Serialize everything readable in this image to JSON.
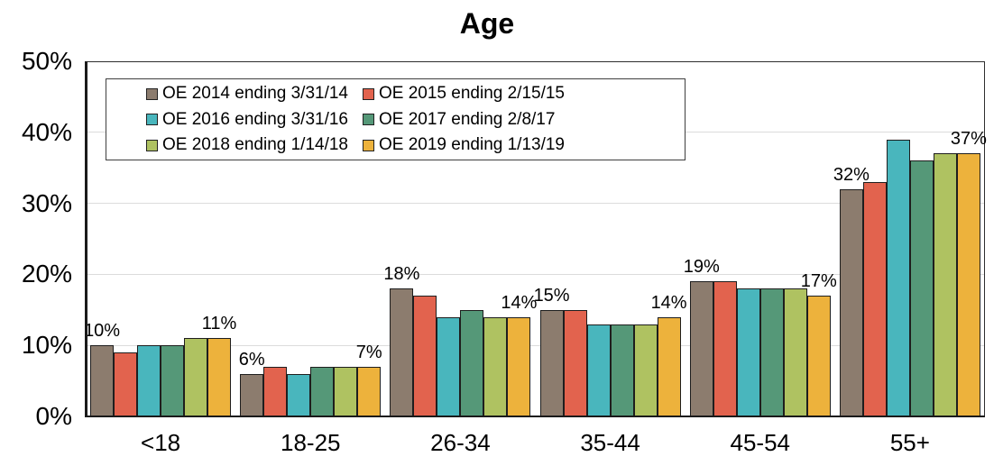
{
  "chart_data": {
    "type": "bar",
    "title": "Age",
    "categories": [
      "<18",
      "18-25",
      "26-34",
      "35-44",
      "45-54",
      "55+"
    ],
    "series": [
      {
        "name": "OE 2014 ending 3/31/14",
        "color": "#8C7C6E",
        "values": [
          10,
          6,
          18,
          15,
          19,
          32
        ]
      },
      {
        "name": "OE 2015 ending 2/15/15",
        "color": "#E2634E",
        "values": [
          9,
          7,
          17,
          15,
          19,
          33
        ]
      },
      {
        "name": "OE 2016 ending 3/31/16",
        "color": "#49B6BD",
        "values": [
          10,
          6,
          14,
          13,
          18,
          39
        ]
      },
      {
        "name": "OE 2017 ending 2/8/17",
        "color": "#559878",
        "values": [
          10,
          7,
          15,
          13,
          18,
          36
        ]
      },
      {
        "name": "OE 2018 ending 1/14/18",
        "color": "#AFC261",
        "values": [
          11,
          7,
          14,
          13,
          18,
          37
        ]
      },
      {
        "name": "OE 2019 ending 1/13/19",
        "color": "#EDB23C",
        "values": [
          11,
          7,
          14,
          14,
          17,
          37
        ]
      }
    ],
    "ylabel": "",
    "xlabel": "",
    "ylim": [
      0,
      50
    ],
    "yticks": [
      "0%",
      "10%",
      "20%",
      "30%",
      "40%",
      "50%"
    ],
    "grid": true,
    "legend_position": "top-left-inside",
    "data_labels": {
      "first_series": [
        "10%",
        "6%",
        "18%",
        "15%",
        "19%",
        "32%"
      ],
      "last_series": [
        "11%",
        "7%",
        "14%",
        "14%",
        "17%",
        "37%"
      ]
    }
  }
}
